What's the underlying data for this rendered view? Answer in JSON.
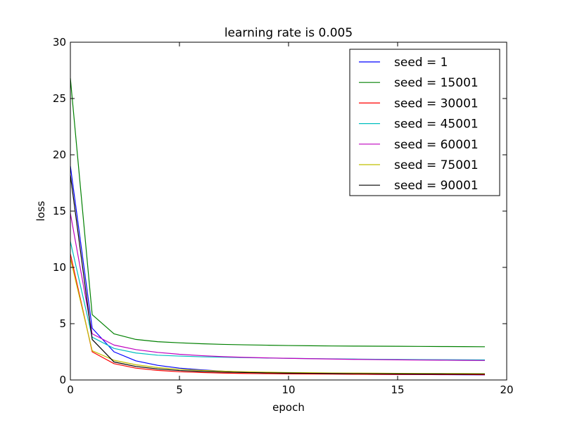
{
  "chart_data": {
    "type": "line",
    "title": "learning rate is  0.005",
    "xlabel": "epoch",
    "ylabel": "loss",
    "xlim": [
      0,
      20
    ],
    "ylim": [
      0,
      30
    ],
    "xticks": [
      0,
      5,
      10,
      15,
      20
    ],
    "yticks": [
      0,
      5,
      10,
      15,
      20,
      25,
      30
    ],
    "grid": false,
    "legend_position": "top-right",
    "x": [
      0,
      1,
      2,
      3,
      4,
      5,
      6,
      7,
      8,
      9,
      10,
      11,
      12,
      13,
      14,
      15,
      16,
      17,
      18,
      19
    ],
    "series": [
      {
        "name": "seed = 1",
        "color": "#0000ff",
        "values": [
          19.0,
          4.6,
          2.5,
          1.7,
          1.3,
          1.05,
          0.9,
          0.78,
          0.7,
          0.64,
          0.6,
          0.57,
          0.54,
          0.52,
          0.5,
          0.49,
          0.48,
          0.47,
          0.46,
          0.45
        ]
      },
      {
        "name": "seed = 15001",
        "color": "#008000",
        "values": [
          26.8,
          5.8,
          4.1,
          3.6,
          3.4,
          3.3,
          3.22,
          3.16,
          3.12,
          3.09,
          3.06,
          3.04,
          3.02,
          3.01,
          3.0,
          2.99,
          2.98,
          2.97,
          2.96,
          2.95
        ]
      },
      {
        "name": "seed = 30001",
        "color": "#ff0000",
        "values": [
          11.2,
          2.5,
          1.45,
          1.05,
          0.85,
          0.73,
          0.66,
          0.61,
          0.58,
          0.56,
          0.54,
          0.53,
          0.52,
          0.51,
          0.5,
          0.49,
          0.49,
          0.48,
          0.48,
          0.47
        ]
      },
      {
        "name": "seed = 45001",
        "color": "#00bfbf",
        "values": [
          12.3,
          3.8,
          2.8,
          2.4,
          2.2,
          2.12,
          2.06,
          2.02,
          1.98,
          1.95,
          1.92,
          1.9,
          1.88,
          1.86,
          1.84,
          1.82,
          1.81,
          1.8,
          1.79,
          1.78
        ]
      },
      {
        "name": "seed = 60001",
        "color": "#bf00bf",
        "values": [
          14.8,
          4.1,
          3.1,
          2.7,
          2.45,
          2.28,
          2.16,
          2.07,
          2.01,
          1.96,
          1.92,
          1.89,
          1.86,
          1.83,
          1.81,
          1.79,
          1.77,
          1.76,
          1.74,
          1.73
        ]
      },
      {
        "name": "seed = 75001",
        "color": "#bfbf00",
        "values": [
          10.8,
          2.6,
          1.75,
          1.35,
          1.1,
          0.95,
          0.85,
          0.78,
          0.73,
          0.69,
          0.66,
          0.64,
          0.62,
          0.61,
          0.6,
          0.59,
          0.58,
          0.57,
          0.57,
          0.56
        ]
      },
      {
        "name": "seed = 90001",
        "color": "#000000",
        "values": [
          18.2,
          3.6,
          1.6,
          1.2,
          0.98,
          0.84,
          0.76,
          0.7,
          0.66,
          0.63,
          0.61,
          0.59,
          0.57,
          0.56,
          0.55,
          0.54,
          0.53,
          0.53,
          0.52,
          0.52
        ]
      }
    ]
  }
}
